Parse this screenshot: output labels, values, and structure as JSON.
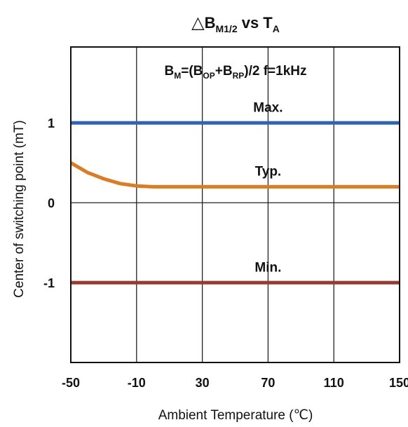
{
  "chart_data": {
    "type": "line",
    "title": {
      "symbol": "△",
      "main": "B",
      "sub": "M1/2",
      "mid": " vs T",
      "sub2": "A"
    },
    "formula": {
      "parts": [
        {
          "text": "B",
          "sub": false
        },
        {
          "text": "M",
          "sub": true
        },
        {
          "text": "=(B",
          "sub": false
        },
        {
          "text": "OP",
          "sub": true
        },
        {
          "text": "+B",
          "sub": false
        },
        {
          "text": "RP",
          "sub": true
        },
        {
          "text": ")/2   f=1kHz",
          "sub": false
        }
      ]
    },
    "xlabel": "Ambient Temperature (℃)",
    "ylabel": "Center of switching point (mT)",
    "xlim": [
      -50,
      150
    ],
    "ylim": [
      -2,
      1.95
    ],
    "xticks": [
      -50,
      -10,
      30,
      70,
      110,
      150
    ],
    "yticks": [
      1,
      0,
      -1
    ],
    "grid": true,
    "series": [
      {
        "name": "Max.",
        "color": "#2f63b5",
        "x": [
          -50,
          150
        ],
        "y": [
          1.0,
          1.0
        ]
      },
      {
        "name": "Typ.",
        "color": "#e07a1f",
        "x": [
          -50,
          -40,
          -30,
          -20,
          -10,
          0,
          10,
          150
        ],
        "y": [
          0.5,
          0.38,
          0.3,
          0.24,
          0.21,
          0.2,
          0.2,
          0.2
        ]
      },
      {
        "name": "Min.",
        "color": "#9a3a2e",
        "x": [
          -50,
          150
        ],
        "y": [
          -1.0,
          -1.0
        ]
      }
    ],
    "annotations": [
      {
        "text": "Max.",
        "x": 70,
        "y": 1.2
      },
      {
        "text": "Typ.",
        "x": 70,
        "y": 0.4
      },
      {
        "text": "Min.",
        "x": 70,
        "y": -0.8
      }
    ]
  }
}
